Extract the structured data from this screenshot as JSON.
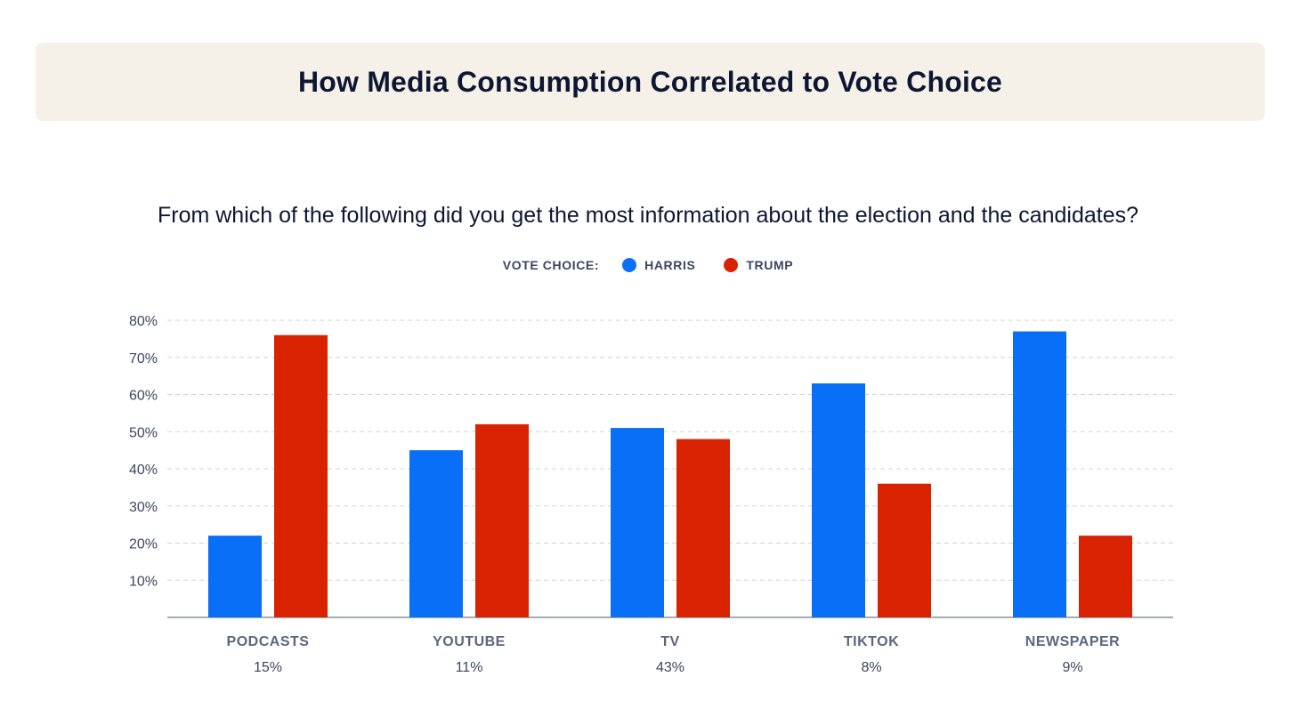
{
  "header": {
    "title": "How Media Consumption Correlated to Vote Choice"
  },
  "question": "From which of the following did you get the most information about the election and the candidates?",
  "legend": {
    "label": "VOTE CHOICE:",
    "items": [
      {
        "name": "HARRIS",
        "color": "#0a6ff7"
      },
      {
        "name": "TRUMP",
        "color": "#d92300"
      }
    ]
  },
  "chart_data": {
    "type": "bar",
    "title": "How Media Consumption Correlated to Vote Choice",
    "subtitle": "From which of the following did you get the most information about the election and the candidates?",
    "categories": [
      "PODCASTS",
      "YOUTUBE",
      "TV",
      "TIKTOK",
      "NEWSPAPER"
    ],
    "category_shares": [
      "15%",
      "11%",
      "43%",
      "8%",
      "9%"
    ],
    "series": [
      {
        "name": "HARRIS",
        "color": "#0a6ff7",
        "values": [
          22,
          45,
          51,
          63,
          77
        ]
      },
      {
        "name": "TRUMP",
        "color": "#d92300",
        "values": [
          76,
          52,
          48,
          36,
          22
        ]
      }
    ],
    "yticks": [
      "10%",
      "20%",
      "30%",
      "40%",
      "50%",
      "60%",
      "70%",
      "80%"
    ],
    "ytick_values": [
      10,
      20,
      30,
      40,
      50,
      60,
      70,
      80
    ],
    "ylim": [
      0,
      80
    ],
    "grid": true,
    "legend_position": "top-center",
    "xlabel": "",
    "ylabel": ""
  }
}
